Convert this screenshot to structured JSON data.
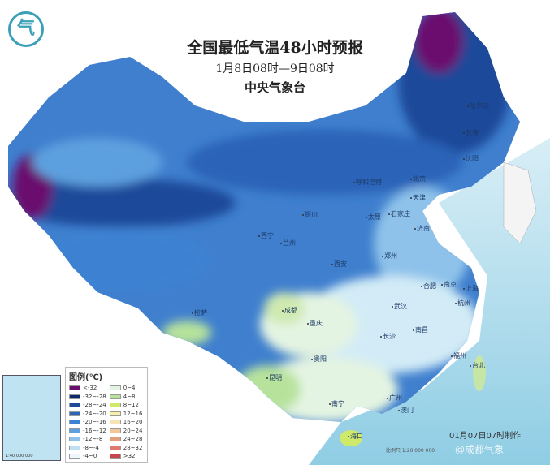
{
  "title": "全国最低气温48小时预报",
  "subtitle": "1月8日08时—9日08时",
  "issuer": "中央气象台",
  "made_time": "01月07日07时制作",
  "scale": "比例尺 1:20 000 000",
  "watermark": "@成都气象",
  "inset_scale": "1:40 000 000",
  "legend": {
    "title": "图例(℃)",
    "items": [
      {
        "label": "<-32",
        "color": "#6a0f6e"
      },
      {
        "label": "-32~-28",
        "color": "#0d2a6b"
      },
      {
        "label": "-28~-24",
        "color": "#1d4a9a"
      },
      {
        "label": "-24~-20",
        "color": "#2b64b8"
      },
      {
        "label": "-20~-16",
        "color": "#3c82d2"
      },
      {
        "label": "-16~-12",
        "color": "#5da0df"
      },
      {
        "label": "-12~-8",
        "color": "#8ec2ea"
      },
      {
        "label": "-8~-4",
        "color": "#bfe0f4"
      },
      {
        "label": "-4~0",
        "color": "#eef7fb"
      },
      {
        "label": "0~4",
        "color": "#e4f4e2"
      },
      {
        "label": "4~8",
        "color": "#b7e29c"
      },
      {
        "label": "8~12",
        "color": "#cfe96a"
      },
      {
        "label": "12~16",
        "color": "#f6f1a5"
      },
      {
        "label": "16~20",
        "color": "#f9e3b6"
      },
      {
        "label": "20~24",
        "color": "#f3c79a"
      },
      {
        "label": "24~28",
        "color": "#e39f7c"
      },
      {
        "label": "28~32",
        "color": "#e07a70"
      },
      {
        "label": ">32",
        "color": "#c9464f"
      }
    ]
  },
  "cities": [
    {
      "name": "北京"
    },
    {
      "name": "天津"
    },
    {
      "name": "石家庄"
    },
    {
      "name": "太原"
    },
    {
      "name": "呼和浩特"
    },
    {
      "name": "银川"
    },
    {
      "name": "济南"
    },
    {
      "name": "西宁"
    },
    {
      "name": "兰州"
    },
    {
      "name": "郑州"
    },
    {
      "name": "西安"
    },
    {
      "name": "合肥"
    },
    {
      "name": "南京"
    },
    {
      "name": "上海"
    },
    {
      "name": "杭州"
    },
    {
      "name": "武汉"
    },
    {
      "name": "成都"
    },
    {
      "name": "重庆"
    },
    {
      "name": "南昌"
    },
    {
      "name": "长沙"
    },
    {
      "name": "贵阳"
    },
    {
      "name": "福州"
    },
    {
      "name": "台北"
    },
    {
      "name": "昆明"
    },
    {
      "name": "南宁"
    },
    {
      "name": "广州"
    },
    {
      "name": "澳门"
    },
    {
      "name": "海口"
    },
    {
      "name": "拉萨"
    },
    {
      "name": "沈阳"
    },
    {
      "name": "长春"
    },
    {
      "name": "哈尔滨"
    }
  ]
}
